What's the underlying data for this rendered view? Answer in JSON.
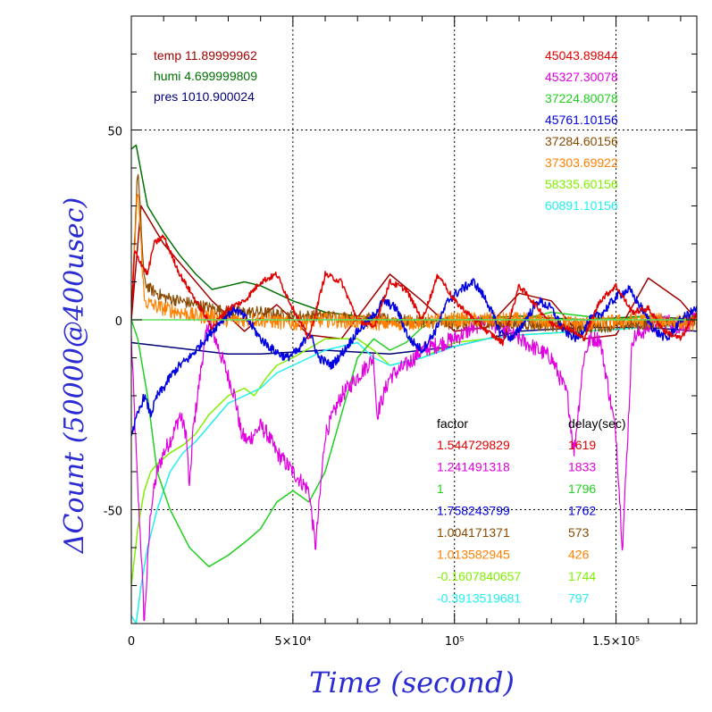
{
  "chart_data": {
    "type": "line",
    "title": "",
    "xlabel": "Time (second)",
    "ylabel": "ΔCount (50000@400usec)",
    "xlim": [
      0,
      175000
    ],
    "ylim": [
      -80,
      80
    ],
    "x_ticks": [
      {
        "value": 0,
        "label": "0"
      },
      {
        "value": 50000,
        "label": "5×10⁴"
      },
      {
        "value": 100000,
        "label": "10⁵"
      },
      {
        "value": 150000,
        "label": "1.5×10⁵"
      }
    ],
    "y_ticks": [
      {
        "value": 50,
        "label": "50"
      },
      {
        "value": 0,
        "label": "0"
      },
      {
        "value": -50,
        "label": "-50"
      }
    ],
    "grid": "dotted major gridlines",
    "environment": [
      {
        "label": "temp 11.89999962",
        "color": "#a00000"
      },
      {
        "label": "humi 4.699999809",
        "color": "#007000"
      },
      {
        "label": "pres 1010.900024",
        "color": "#00007a"
      }
    ],
    "legend_values": [
      {
        "label": "45043.89844",
        "color": "#e00000"
      },
      {
        "label": "45327.30078",
        "color": "#e000e0"
      },
      {
        "label": "37224.80078",
        "color": "#20d020"
      },
      {
        "label": "45761.10156",
        "color": "#0000e0"
      },
      {
        "label": "37284.60156",
        "color": "#8b4a00"
      },
      {
        "label": "37303.69922",
        "color": "#ff8000"
      },
      {
        "label": "58335.60156",
        "color": "#80f000"
      },
      {
        "label": "60891.10156",
        "color": "#20f0f0"
      }
    ],
    "table": {
      "header_factor": "factor",
      "header_delay": "delay(sec)",
      "rows": [
        {
          "factor": "1.544729829",
          "delay": "1619",
          "color": "#e00000"
        },
        {
          "factor": "1.241491318",
          "delay": "1833",
          "color": "#e000e0"
        },
        {
          "factor": "1",
          "delay": "1796",
          "color": "#20d020"
        },
        {
          "factor": "1.758243799",
          "delay": "1762",
          "color": "#0000e0"
        },
        {
          "factor": "1.004171371",
          "delay": "573",
          "color": "#8b4a00"
        },
        {
          "factor": "1.013582945",
          "delay": "426",
          "color": "#ff8000"
        },
        {
          "factor": "-0.1607840657",
          "delay": "1744",
          "color": "#80f000"
        },
        {
          "factor": "-0.3913519681",
          "delay": "797",
          "color": "#20f0f0"
        }
      ]
    },
    "series": [
      {
        "color": "#a00000",
        "noise": 0,
        "x": [
          0,
          3000,
          10000,
          25000,
          35000,
          45000,
          55000,
          65000,
          80000,
          90000,
          100000,
          110000,
          120000,
          130000,
          140000,
          150000,
          160000,
          170000,
          175000
        ],
        "y": [
          0,
          30,
          20,
          5,
          -3,
          4,
          -4,
          -5,
          12,
          5,
          -3,
          -2,
          7,
          5,
          -5,
          -4,
          11,
          5,
          0
        ]
      },
      {
        "color": "#007000",
        "noise": 0,
        "x": [
          0,
          1500,
          5000,
          10000,
          15000,
          20000,
          25000,
          30000,
          35000,
          40000,
          50000,
          60000,
          80000,
          100000,
          120000,
          140000,
          160000,
          175000
        ],
        "y": [
          45,
          46,
          30,
          23,
          17,
          12,
          8,
          9,
          10,
          9,
          5,
          2,
          0,
          0,
          1,
          0,
          1,
          0
        ]
      },
      {
        "color": "#00007a",
        "noise": 0,
        "x": [
          0,
          10000,
          20000,
          30000,
          40000,
          60000,
          80000,
          100000,
          120000,
          140000,
          160000,
          175000
        ],
        "y": [
          -6,
          -7,
          -8,
          -9,
          -9,
          -8,
          -9,
          -7,
          -3,
          -2,
          -2,
          -3
        ]
      },
      {
        "color": "#e00000",
        "noise": 0.8,
        "x": [
          0,
          1000,
          3000,
          5000,
          7000,
          10000,
          12000,
          15000,
          20000,
          25000,
          30000,
          35000,
          40000,
          45000,
          50000,
          55000,
          60000,
          65000,
          70000,
          75000,
          80000,
          85000,
          90000,
          95000,
          100000,
          105000,
          110000,
          115000,
          120000,
          125000,
          130000,
          135000,
          140000,
          145000,
          150000,
          155000,
          160000,
          165000,
          170000,
          175000
        ],
        "y": [
          0,
          18,
          15,
          12,
          20,
          22,
          18,
          12,
          5,
          -2,
          3,
          5,
          10,
          12,
          3,
          -5,
          12,
          10,
          0,
          -2,
          10,
          8,
          0,
          12,
          5,
          1,
          -3,
          -6,
          9,
          4,
          -1,
          -2,
          -5,
          5,
          9,
          2,
          3,
          -3,
          -5,
          2
        ]
      },
      {
        "color": "#e000e0",
        "noise": 2.2,
        "x": [
          0,
          1000,
          2000,
          3000,
          4000,
          6000,
          8000,
          10000,
          13000,
          15000,
          17000,
          18000,
          19000,
          22000,
          24000,
          26000,
          28000,
          30000,
          32000,
          33000,
          34000,
          36000,
          38000,
          40000,
          42000,
          45000,
          50000,
          55000,
          57000,
          60000,
          65000,
          70000,
          75000,
          76000,
          80000,
          85000,
          90000,
          100000,
          110000,
          120000,
          130000,
          135000,
          137000,
          140000,
          142000,
          145000,
          150000,
          152000,
          155000,
          160000,
          165000,
          170000,
          175000
        ],
        "y": [
          -5,
          -25,
          -45,
          -60,
          -80,
          -50,
          -40,
          -35,
          -30,
          -25,
          -30,
          -45,
          -30,
          -10,
          0,
          -5,
          -10,
          -15,
          -20,
          -25,
          -30,
          -32,
          -30,
          -28,
          -30,
          -35,
          -40,
          -45,
          -60,
          -30,
          -20,
          -15,
          -10,
          -25,
          -15,
          -12,
          -8,
          -5,
          0,
          -5,
          -10,
          -20,
          -35,
          -10,
          -5,
          -5,
          -30,
          -60,
          -5,
          -2,
          0,
          -2,
          0
        ]
      },
      {
        "color": "#20d020",
        "noise": 0,
        "x": [
          0,
          2000,
          5000,
          8000,
          12000,
          18000,
          24000,
          30000,
          36000,
          40000,
          45000,
          50000,
          55000,
          60000,
          65000,
          70000,
          75000,
          80000,
          85000,
          90000,
          95000,
          100000,
          105000,
          110000,
          120000,
          130000,
          140000,
          150000,
          160000,
          170000,
          175000
        ],
        "y": [
          0,
          -5,
          -20,
          -40,
          -50,
          -60,
          -65,
          -62,
          -58,
          -55,
          -48,
          -45,
          -48,
          -40,
          -25,
          -10,
          -5,
          -8,
          -6,
          -2,
          0,
          1,
          0,
          1,
          0,
          2,
          1,
          0,
          1,
          0,
          0
        ]
      },
      {
        "color": "#0000e0",
        "noise": 1.2,
        "x": [
          0,
          2000,
          4000,
          6000,
          8000,
          10000,
          12000,
          15000,
          18000,
          20000,
          23000,
          25000,
          28000,
          32000,
          36000,
          40000,
          44000,
          48000,
          52000,
          55000,
          58000,
          62000,
          66000,
          70000,
          74000,
          78000,
          82000,
          86000,
          90000,
          94000,
          98000,
          102000,
          106000,
          110000,
          114000,
          118000,
          122000,
          126000,
          130000,
          134000,
          138000,
          142000,
          146000,
          150000,
          154000,
          158000,
          162000,
          166000,
          170000,
          175000
        ],
        "y": [
          -30,
          -25,
          -20,
          -25,
          -20,
          -18,
          -15,
          -12,
          -10,
          -8,
          -5,
          -3,
          0,
          3,
          0,
          -5,
          -8,
          -10,
          -8,
          -3,
          -10,
          -12,
          -8,
          -3,
          0,
          5,
          3,
          -5,
          -8,
          -3,
          5,
          8,
          10,
          5,
          -3,
          -5,
          0,
          5,
          3,
          -3,
          -5,
          0,
          2,
          6,
          8,
          3,
          -3,
          -5,
          0,
          3
        ]
      },
      {
        "color": "#8b4a00",
        "noise": 1.6,
        "x": [
          0,
          2000,
          4000,
          6000,
          10000,
          15000,
          20000,
          25000,
          30000,
          40000,
          50000,
          60000,
          80000,
          100000,
          120000,
          140000,
          160000,
          175000
        ],
        "y": [
          2,
          40,
          10,
          8,
          6,
          5,
          4,
          3,
          2,
          2,
          1,
          1,
          0,
          -1,
          -1,
          -2,
          -1,
          0
        ]
      },
      {
        "color": "#ff8000",
        "noise": 2.0,
        "x": [
          0,
          2000,
          4000,
          6000,
          10000,
          15000,
          20000,
          25000,
          30000,
          40000,
          50000,
          60000,
          80000,
          100000,
          120000,
          140000,
          160000,
          175000
        ],
        "y": [
          2,
          35,
          5,
          4,
          3,
          2,
          1,
          1,
          0,
          0,
          -1,
          0,
          -1,
          0,
          0,
          -1,
          0,
          -1
        ]
      },
      {
        "color": "#80f000",
        "noise": 0,
        "x": [
          0,
          2000,
          4000,
          6000,
          8000,
          12000,
          16000,
          20000,
          24000,
          30000,
          35000,
          38000,
          42000,
          45000,
          50000,
          60000,
          70000,
          75000,
          80000,
          90000,
          100000,
          110000,
          120000,
          140000,
          160000,
          175000
        ],
        "y": [
          -70,
          -55,
          -45,
          -40,
          -38,
          -35,
          -33,
          -30,
          -25,
          -20,
          -18,
          -20,
          -15,
          -12,
          -10,
          -5,
          -5,
          -8,
          -12,
          -10,
          -6,
          -5,
          -4,
          -3,
          -2,
          -1
        ]
      },
      {
        "color": "#20f0f0",
        "noise": 0,
        "x": [
          0,
          1500,
          3000,
          5000,
          8000,
          12000,
          16000,
          20000,
          24000,
          30000,
          35000,
          40000,
          45000,
          50000,
          60000,
          70000,
          75000,
          80000,
          90000,
          100000,
          110000,
          120000,
          140000,
          160000,
          175000
        ],
        "y": [
          -78,
          -80,
          -70,
          -60,
          -50,
          -40,
          -35,
          -32,
          -28,
          -22,
          -20,
          -18,
          -14,
          -12,
          -8,
          -6,
          -10,
          -12,
          -10,
          -7,
          -5,
          -4,
          -3,
          -2,
          -1
        ]
      },
      {
        "color": "#60e060",
        "noise": 0,
        "x": [
          0,
          175000
        ],
        "y": [
          0,
          0
        ]
      }
    ]
  }
}
